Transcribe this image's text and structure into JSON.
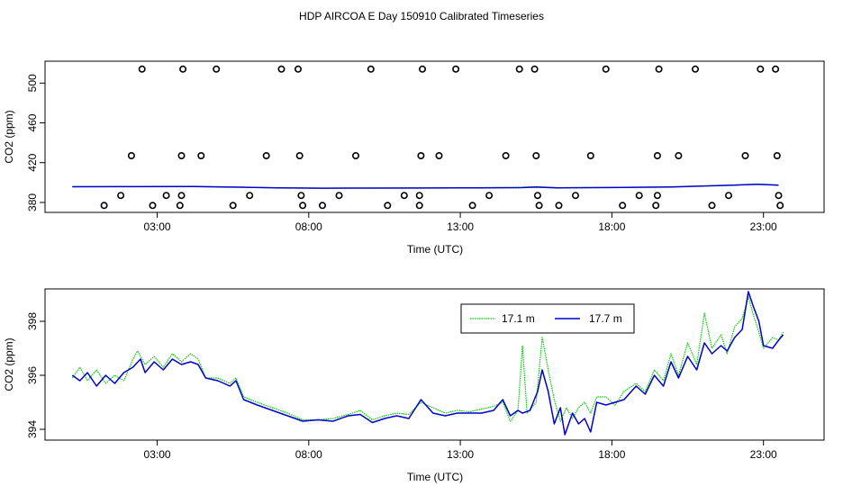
{
  "figure": {
    "title": "HDP AIRCOA E  Day 150910  Calibrated Timeseries"
  },
  "chart_data": [
    {
      "type": "scatter",
      "id": "top",
      "xlabel": "Time (UTC)",
      "ylabel": "CO2 (ppm)",
      "xlim": [
        -0.7,
        25.0
      ],
      "ylim": [
        370,
        522
      ],
      "x_ticks": [
        3,
        8,
        13,
        18,
        23
      ],
      "x_tick_labels": [
        "03:00",
        "08:00",
        "13:00",
        "18:00",
        "23:00"
      ],
      "y_ticks": [
        380,
        420,
        460,
        500
      ],
      "y_tick_labels": [
        "380",
        "420",
        "460",
        "500"
      ],
      "outlier_points": [
        [
          1.25,
          377
        ],
        [
          1.8,
          387
        ],
        [
          2.15,
          427
        ],
        [
          2.5,
          514
        ],
        [
          2.85,
          377
        ],
        [
          3.3,
          387
        ],
        [
          3.75,
          377
        ],
        [
          3.8,
          387
        ],
        [
          3.8,
          427
        ],
        [
          3.85,
          514
        ],
        [
          4.45,
          427
        ],
        [
          4.95,
          514
        ],
        [
          5.5,
          377
        ],
        [
          6.05,
          387
        ],
        [
          6.6,
          427
        ],
        [
          7.1,
          514
        ],
        [
          7.65,
          514
        ],
        [
          7.7,
          427
        ],
        [
          7.75,
          387
        ],
        [
          7.8,
          377
        ],
        [
          8.45,
          377
        ],
        [
          9.0,
          387
        ],
        [
          9.55,
          427
        ],
        [
          10.05,
          514
        ],
        [
          10.6,
          377
        ],
        [
          11.15,
          387
        ],
        [
          11.65,
          387
        ],
        [
          11.65,
          377
        ],
        [
          11.7,
          427
        ],
        [
          11.75,
          514
        ],
        [
          12.3,
          427
        ],
        [
          12.85,
          514
        ],
        [
          13.4,
          377
        ],
        [
          13.95,
          387
        ],
        [
          14.5,
          427
        ],
        [
          14.95,
          514
        ],
        [
          15.45,
          514
        ],
        [
          15.5,
          427
        ],
        [
          15.55,
          387
        ],
        [
          15.6,
          377
        ],
        [
          16.25,
          377
        ],
        [
          16.8,
          387
        ],
        [
          17.3,
          427
        ],
        [
          17.8,
          514
        ],
        [
          18.35,
          377
        ],
        [
          18.9,
          387
        ],
        [
          19.45,
          377
        ],
        [
          19.5,
          387
        ],
        [
          19.5,
          427
        ],
        [
          19.55,
          514
        ],
        [
          20.2,
          427
        ],
        [
          20.75,
          514
        ],
        [
          21.3,
          377
        ],
        [
          21.85,
          387
        ],
        [
          22.4,
          427
        ],
        [
          22.9,
          514
        ],
        [
          23.4,
          514
        ],
        [
          23.45,
          427
        ],
        [
          23.5,
          387
        ],
        [
          23.55,
          377
        ]
      ],
      "series": [
        {
          "key": "s171",
          "color": "#00cc00",
          "points": [
            [
              0.2,
              395.9
            ],
            [
              2.0,
              395.9
            ],
            [
              4.2,
              396.2
            ],
            [
              5.5,
              395.5
            ],
            [
              7.0,
              394.7
            ],
            [
              8.5,
              394.3
            ],
            [
              10.0,
              394.5
            ],
            [
              12.0,
              394.6
            ],
            [
              13.5,
              394.8
            ],
            [
              15.0,
              395.2
            ],
            [
              15.5,
              396.0
            ],
            [
              16.2,
              394.9
            ],
            [
              18.0,
              395.1
            ],
            [
              20.0,
              395.8
            ],
            [
              22.0,
              397.5
            ],
            [
              22.8,
              398.5
            ],
            [
              23.5,
              397.5
            ]
          ]
        },
        {
          "key": "s177",
          "color": "#0000cc",
          "points": [
            [
              0.2,
              395.8
            ],
            [
              2.0,
              395.9
            ],
            [
              4.2,
              396.1
            ],
            [
              5.5,
              395.4
            ],
            [
              7.0,
              394.6
            ],
            [
              8.5,
              394.3
            ],
            [
              10.0,
              394.4
            ],
            [
              12.0,
              394.5
            ],
            [
              13.5,
              394.7
            ],
            [
              15.0,
              394.9
            ],
            [
              15.5,
              395.4
            ],
            [
              16.2,
              394.7
            ],
            [
              18.0,
              395.0
            ],
            [
              20.0,
              395.6
            ],
            [
              22.0,
              397.3
            ],
            [
              22.8,
              398.2
            ],
            [
              23.5,
              397.4
            ]
          ]
        }
      ]
    },
    {
      "type": "line",
      "id": "bottom",
      "xlabel": "Time (UTC)",
      "ylabel": "CO2 (ppm)",
      "xlim": [
        -0.7,
        25.0
      ],
      "ylim": [
        393.6,
        399.2
      ],
      "x_ticks": [
        3,
        8,
        13,
        18,
        23
      ],
      "x_tick_labels": [
        "03:00",
        "08:00",
        "13:00",
        "18:00",
        "23:00"
      ],
      "y_ticks": [
        394,
        396,
        398
      ],
      "y_tick_labels": [
        "394",
        "396",
        "398"
      ],
      "legend": {
        "position": "top-right",
        "entries": [
          {
            "key": "s171",
            "label": "17.1 m"
          },
          {
            "key": "s177",
            "label": "17.7 m"
          }
        ]
      },
      "series": [
        {
          "key": "s171",
          "color": "#00cc00",
          "points": [
            [
              0.2,
              395.9
            ],
            [
              0.45,
              396.3
            ],
            [
              0.7,
              395.8
            ],
            [
              1.0,
              396.2
            ],
            [
              1.3,
              395.7
            ],
            [
              1.6,
              396.0
            ],
            [
              1.9,
              395.8
            ],
            [
              2.2,
              396.6
            ],
            [
              2.35,
              396.9
            ],
            [
              2.6,
              396.4
            ],
            [
              2.9,
              396.7
            ],
            [
              3.2,
              396.3
            ],
            [
              3.5,
              396.8
            ],
            [
              3.8,
              396.5
            ],
            [
              4.1,
              396.8
            ],
            [
              4.35,
              396.6
            ],
            [
              4.6,
              395.9
            ],
            [
              5.0,
              395.9
            ],
            [
              5.4,
              395.7
            ],
            [
              5.6,
              395.9
            ],
            [
              5.85,
              395.2
            ],
            [
              6.3,
              395.0
            ],
            [
              6.8,
              394.8
            ],
            [
              7.3,
              394.6
            ],
            [
              7.8,
              394.35
            ],
            [
              8.3,
              394.35
            ],
            [
              8.8,
              394.4
            ],
            [
              9.3,
              394.55
            ],
            [
              9.7,
              394.7
            ],
            [
              10.1,
              394.35
            ],
            [
              10.5,
              394.5
            ],
            [
              10.9,
              394.6
            ],
            [
              11.3,
              394.55
            ],
            [
              11.7,
              395.0
            ],
            [
              12.1,
              394.8
            ],
            [
              12.5,
              394.6
            ],
            [
              12.9,
              394.7
            ],
            [
              13.3,
              394.65
            ],
            [
              13.7,
              394.75
            ],
            [
              14.1,
              394.85
            ],
            [
              14.4,
              395.0
            ],
            [
              14.65,
              394.3
            ],
            [
              14.9,
              394.7
            ],
            [
              15.05,
              397.1
            ],
            [
              15.2,
              394.6
            ],
            [
              15.5,
              395.0
            ],
            [
              15.7,
              397.4
            ],
            [
              15.9,
              396.2
            ],
            [
              16.1,
              395.1
            ],
            [
              16.3,
              394.3
            ],
            [
              16.5,
              394.8
            ],
            [
              16.7,
              394.4
            ],
            [
              16.9,
              394.8
            ],
            [
              17.1,
              395.0
            ],
            [
              17.3,
              394.6
            ],
            [
              17.5,
              395.2
            ],
            [
              17.8,
              395.2
            ],
            [
              18.1,
              394.9
            ],
            [
              18.4,
              395.4
            ],
            [
              18.8,
              395.7
            ],
            [
              19.1,
              395.4
            ],
            [
              19.4,
              396.2
            ],
            [
              19.7,
              395.8
            ],
            [
              19.95,
              396.8
            ],
            [
              20.2,
              396.0
            ],
            [
              20.5,
              397.2
            ],
            [
              20.8,
              396.4
            ],
            [
              21.05,
              398.3
            ],
            [
              21.3,
              397.0
            ],
            [
              21.6,
              397.5
            ],
            [
              21.8,
              396.8
            ],
            [
              22.05,
              397.8
            ],
            [
              22.3,
              398.1
            ],
            [
              22.5,
              398.9
            ],
            [
              22.65,
              398.3
            ],
            [
              22.85,
              397.6
            ],
            [
              23.0,
              397.0
            ],
            [
              23.3,
              397.4
            ],
            [
              23.5,
              397.3
            ],
            [
              23.65,
              397.6
            ]
          ]
        },
        {
          "key": "s177",
          "color": "#0000cc",
          "points": [
            [
              0.2,
              396.0
            ],
            [
              0.45,
              395.8
            ],
            [
              0.7,
              396.1
            ],
            [
              1.0,
              395.6
            ],
            [
              1.3,
              396.0
            ],
            [
              1.6,
              395.7
            ],
            [
              1.9,
              396.1
            ],
            [
              2.2,
              396.3
            ],
            [
              2.45,
              396.6
            ],
            [
              2.6,
              396.1
            ],
            [
              2.9,
              396.5
            ],
            [
              3.2,
              396.2
            ],
            [
              3.5,
              396.6
            ],
            [
              3.8,
              396.4
            ],
            [
              4.1,
              396.5
            ],
            [
              4.35,
              396.4
            ],
            [
              4.6,
              395.9
            ],
            [
              5.0,
              395.8
            ],
            [
              5.4,
              395.6
            ],
            [
              5.6,
              395.8
            ],
            [
              5.85,
              395.1
            ],
            [
              6.3,
              394.9
            ],
            [
              6.8,
              394.7
            ],
            [
              7.3,
              394.5
            ],
            [
              7.8,
              394.3
            ],
            [
              8.3,
              394.35
            ],
            [
              8.8,
              394.3
            ],
            [
              9.3,
              394.5
            ],
            [
              9.7,
              394.55
            ],
            [
              10.1,
              394.25
            ],
            [
              10.5,
              394.4
            ],
            [
              10.9,
              394.5
            ],
            [
              11.3,
              394.4
            ],
            [
              11.7,
              395.1
            ],
            [
              12.1,
              394.6
            ],
            [
              12.5,
              394.5
            ],
            [
              12.9,
              394.6
            ],
            [
              13.3,
              394.6
            ],
            [
              13.7,
              394.6
            ],
            [
              14.1,
              394.7
            ],
            [
              14.4,
              395.1
            ],
            [
              14.65,
              394.5
            ],
            [
              14.9,
              394.7
            ],
            [
              15.05,
              394.6
            ],
            [
              15.3,
              394.7
            ],
            [
              15.55,
              395.4
            ],
            [
              15.7,
              396.2
            ],
            [
              15.9,
              395.4
            ],
            [
              16.1,
              394.2
            ],
            [
              16.3,
              394.8
            ],
            [
              16.45,
              393.8
            ],
            [
              16.7,
              394.6
            ],
            [
              16.9,
              394.2
            ],
            [
              17.1,
              394.4
            ],
            [
              17.3,
              393.9
            ],
            [
              17.5,
              395.0
            ],
            [
              17.8,
              394.9
            ],
            [
              18.1,
              395.0
            ],
            [
              18.4,
              395.1
            ],
            [
              18.8,
              395.6
            ],
            [
              19.1,
              395.3
            ],
            [
              19.4,
              396.0
            ],
            [
              19.7,
              395.6
            ],
            [
              19.95,
              396.5
            ],
            [
              20.2,
              395.9
            ],
            [
              20.5,
              396.7
            ],
            [
              20.8,
              396.2
            ],
            [
              21.05,
              397.2
            ],
            [
              21.3,
              396.8
            ],
            [
              21.6,
              397.1
            ],
            [
              21.8,
              396.9
            ],
            [
              22.05,
              397.4
            ],
            [
              22.3,
              397.7
            ],
            [
              22.5,
              399.1
            ],
            [
              22.65,
              398.6
            ],
            [
              22.85,
              398.0
            ],
            [
              23.0,
              397.1
            ],
            [
              23.3,
              397.0
            ],
            [
              23.5,
              397.3
            ],
            [
              23.65,
              397.5
            ]
          ]
        }
      ]
    }
  ]
}
